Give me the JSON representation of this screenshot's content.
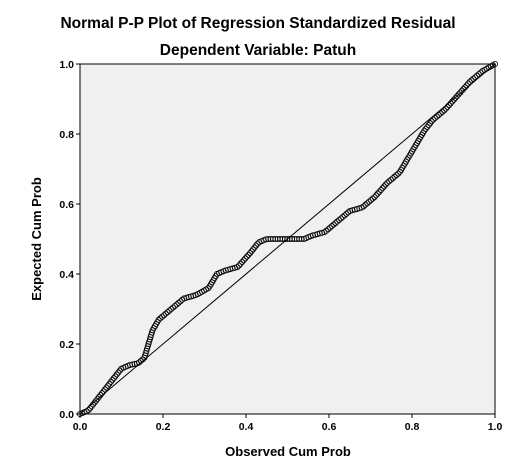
{
  "chart_data": {
    "type": "scatter",
    "title": "Normal P-P Plot of Regression Standardized Residual",
    "subtitle": "Dependent Variable: Patuh",
    "xlabel": "Observed Cum Prob",
    "ylabel": "Expected Cum Prob",
    "xlim": [
      0,
      1
    ],
    "ylim": [
      0,
      1
    ],
    "xticks": [
      "0.0",
      "0.2",
      "0.4",
      "0.6",
      "0.8",
      "1.0"
    ],
    "yticks": [
      "0.0",
      "0.2",
      "0.4",
      "0.6",
      "0.8",
      "1.0"
    ],
    "grid": false,
    "reference_line": {
      "from": [
        0,
        0
      ],
      "to": [
        1,
        1
      ]
    },
    "colors": {
      "plot_background": "#f0f0f0",
      "points": "#000000",
      "line": "#000000"
    },
    "series": [
      {
        "curve": [
          [
            0.0,
            0.0
          ],
          [
            0.02,
            0.01
          ],
          [
            0.04,
            0.04
          ],
          [
            0.06,
            0.07
          ],
          [
            0.08,
            0.1
          ],
          [
            0.1,
            0.13
          ],
          [
            0.12,
            0.14
          ],
          [
            0.14,
            0.145
          ],
          [
            0.155,
            0.16
          ],
          [
            0.165,
            0.2
          ],
          [
            0.175,
            0.24
          ],
          [
            0.19,
            0.27
          ],
          [
            0.21,
            0.29
          ],
          [
            0.23,
            0.31
          ],
          [
            0.25,
            0.33
          ],
          [
            0.28,
            0.34
          ],
          [
            0.31,
            0.36
          ],
          [
            0.33,
            0.4
          ],
          [
            0.35,
            0.41
          ],
          [
            0.38,
            0.42
          ],
          [
            0.41,
            0.46
          ],
          [
            0.43,
            0.49
          ],
          [
            0.45,
            0.5
          ],
          [
            0.5,
            0.5
          ],
          [
            0.54,
            0.5
          ],
          [
            0.56,
            0.51
          ],
          [
            0.59,
            0.52
          ],
          [
            0.62,
            0.55
          ],
          [
            0.65,
            0.58
          ],
          [
            0.68,
            0.59
          ],
          [
            0.71,
            0.62
          ],
          [
            0.74,
            0.66
          ],
          [
            0.77,
            0.69
          ],
          [
            0.79,
            0.73
          ],
          [
            0.81,
            0.77
          ],
          [
            0.83,
            0.81
          ],
          [
            0.85,
            0.84
          ],
          [
            0.88,
            0.87
          ],
          [
            0.91,
            0.91
          ],
          [
            0.94,
            0.95
          ],
          [
            0.97,
            0.98
          ],
          [
            1.0,
            1.0
          ]
        ],
        "count": 240
      }
    ]
  }
}
